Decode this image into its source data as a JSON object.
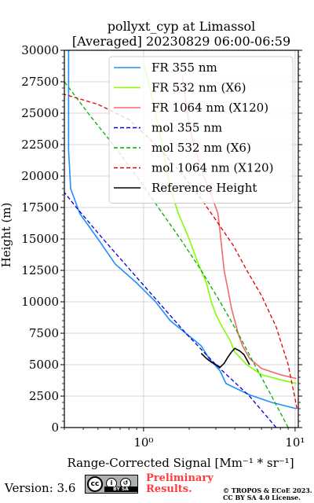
{
  "title_line1": "pollyxt_cyp at Limassol",
  "title_line2": "[Averaged] 20230829 06:00-06:59",
  "footer": {
    "version": "Version: 3.6",
    "preliminary": [
      "Preliminary",
      "Results."
    ],
    "copyright": [
      "© TROPOS & ECoE 2023.",
      "CC BY SA 4.0 License."
    ],
    "license_badge_text": "BY SA",
    "license_badge_icon": "cc-by-sa-icon"
  },
  "chart_data": {
    "type": "line",
    "xlabel": "Range-Corrected Signal [Mm⁻¹ * sr⁻¹]",
    "ylabel": "Height (m)",
    "xscale": "log",
    "xlim": [
      0.3,
      10.5
    ],
    "ylim": [
      0,
      30000
    ],
    "xticks": [
      1,
      10
    ],
    "xtick_labels": [
      "10⁰",
      "10¹"
    ],
    "yticks": [
      0,
      2500,
      5000,
      7500,
      10000,
      12500,
      15000,
      17500,
      20000,
      22500,
      25000,
      27500,
      30000
    ],
    "grid": true,
    "legend_position": "top-right",
    "series": [
      {
        "name": "FR 355 nm",
        "color": "#1f8fff",
        "style": "solid",
        "points": [
          [
            10.2,
            1500
          ],
          [
            7,
            2000
          ],
          [
            5,
            2600
          ],
          [
            3.5,
            3500
          ],
          [
            3.2,
            4500
          ],
          [
            2.7,
            5500
          ],
          [
            2.4,
            6500
          ],
          [
            1.9,
            7500
          ],
          [
            1.5,
            8500
          ],
          [
            1.2,
            10000
          ],
          [
            0.9,
            11500
          ],
          [
            0.65,
            13000
          ],
          [
            0.5,
            15000
          ],
          [
            0.38,
            17000
          ],
          [
            0.33,
            19000
          ],
          [
            0.32,
            22000
          ],
          [
            0.32,
            25000
          ],
          [
            0.32,
            28000
          ],
          [
            0.32,
            30000
          ]
        ]
      },
      {
        "name": "FR 532 nm (X6)",
        "color": "#80ff00",
        "style": "solid",
        "points": [
          [
            10.2,
            3500
          ],
          [
            8,
            3800
          ],
          [
            6,
            4200
          ],
          [
            4.8,
            5000
          ],
          [
            4,
            6000
          ],
          [
            3.7,
            7000
          ],
          [
            3.3,
            8000
          ],
          [
            3,
            9000
          ],
          [
            2.8,
            10000
          ],
          [
            2.6,
            11500
          ],
          [
            2.3,
            13000
          ],
          [
            2,
            15000
          ],
          [
            1.7,
            17000
          ],
          [
            1.5,
            19000
          ],
          [
            1.4,
            21000
          ],
          [
            1.3,
            23000
          ],
          [
            1.2,
            25000
          ],
          [
            1.1,
            27000
          ],
          [
            1,
            29000
          ]
        ]
      },
      {
        "name": "FR 1064 nm (X120)",
        "color": "#f86868",
        "style": "solid",
        "points": [
          [
            10.2,
            3900
          ],
          [
            8,
            4200
          ],
          [
            6,
            4700
          ],
          [
            5,
            5500
          ],
          [
            4.5,
            6500
          ],
          [
            4.2,
            7500
          ],
          [
            4,
            8500
          ],
          [
            3.8,
            9500
          ],
          [
            3.6,
            11000
          ],
          [
            3.4,
            12500
          ],
          [
            3.3,
            14000
          ],
          [
            3.2,
            15500
          ],
          [
            3.1,
            17000
          ],
          [
            2.8,
            18500
          ],
          [
            2.5,
            20000
          ],
          [
            2.2,
            22000
          ],
          [
            2,
            24000
          ],
          [
            1.9,
            26000
          ],
          [
            1.8,
            28000
          ]
        ]
      },
      {
        "name": "mol 355 nm",
        "color": "#0000d8",
        "style": "dashed",
        "points": [
          [
            7.5,
            0
          ],
          [
            5,
            2500
          ],
          [
            3,
            5000
          ],
          [
            1.9,
            7500
          ],
          [
            1.25,
            10000
          ],
          [
            0.82,
            12500
          ],
          [
            0.54,
            15000
          ],
          [
            0.36,
            17500
          ],
          [
            0.3,
            18700
          ]
        ]
      },
      {
        "name": "mol 532 nm (X6)",
        "color": "#00b000",
        "style": "dashed",
        "points": [
          [
            9,
            0
          ],
          [
            7,
            2500
          ],
          [
            5.4,
            5000
          ],
          [
            4.2,
            7500
          ],
          [
            3.2,
            10000
          ],
          [
            2.4,
            12500
          ],
          [
            1.75,
            15000
          ],
          [
            1.25,
            17500
          ],
          [
            0.9,
            20000
          ],
          [
            0.63,
            22500
          ],
          [
            0.43,
            25000
          ],
          [
            0.3,
            27500
          ]
        ]
      },
      {
        "name": "mol 1064 nm (X120)",
        "color": "#e00000",
        "style": "dashed",
        "points": [
          [
            10.3,
            1500
          ],
          [
            9,
            5000
          ],
          [
            7.5,
            8000
          ],
          [
            6,
            10500
          ],
          [
            4.8,
            12500
          ],
          [
            3.9,
            14500
          ],
          [
            3,
            16500
          ],
          [
            2.3,
            18500
          ],
          [
            1.7,
            20500
          ],
          [
            1.2,
            22500
          ],
          [
            0.8,
            24500
          ],
          [
            0.5,
            25700
          ],
          [
            0.3,
            26500
          ]
        ]
      },
      {
        "name": "Reference Height",
        "color": "#000000",
        "style": "solid",
        "points": [
          [
            2.4,
            5900
          ],
          [
            2.6,
            5500
          ],
          [
            2.8,
            5200
          ],
          [
            3,
            5000
          ],
          [
            3.2,
            4800
          ],
          [
            3.4,
            5100
          ],
          [
            3.6,
            5600
          ],
          [
            3.8,
            6000
          ],
          [
            4,
            6300
          ],
          [
            4.3,
            6100
          ],
          [
            4.6,
            5800
          ],
          [
            4.8,
            5400
          ],
          [
            5,
            5000
          ]
        ]
      }
    ]
  }
}
